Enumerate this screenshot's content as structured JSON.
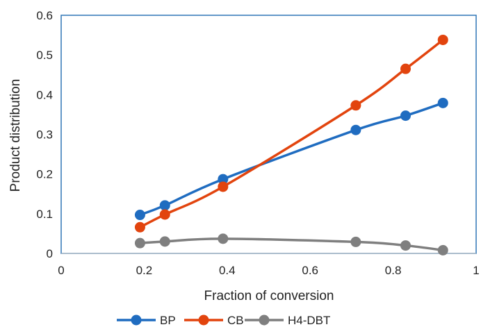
{
  "chart_data": {
    "type": "line",
    "title": "",
    "xlabel": "Fraction of conversion",
    "ylabel": "Product distribution",
    "xlim": [
      0,
      1
    ],
    "ylim": [
      0,
      0.6
    ],
    "xticks": [
      0,
      0.2,
      0.4,
      0.6,
      0.8,
      1
    ],
    "xtick_labels": [
      "0",
      "0.2",
      "0.4",
      "0.6",
      "0.8",
      "1"
    ],
    "yticks": [
      0,
      0.1,
      0.2,
      0.3,
      0.4,
      0.5,
      0.6
    ],
    "ytick_labels": [
      "0",
      "0.1",
      "0.2",
      "0.3",
      "0.4",
      "0.5",
      "0.6"
    ],
    "grid": false,
    "legend_position": "bottom",
    "smooth": true,
    "plot_border_color": "#2E75B6",
    "series": [
      {
        "name": "BP",
        "color": "#1F6CC0",
        "x": [
          0.19,
          0.25,
          0.39,
          0.71,
          0.83,
          0.92
        ],
        "y": [
          0.097,
          0.121,
          0.187,
          0.311,
          0.347,
          0.379
        ]
      },
      {
        "name": "CB",
        "color": "#E2440E",
        "x": [
          0.19,
          0.25,
          0.39,
          0.71,
          0.83,
          0.92
        ],
        "y": [
          0.066,
          0.098,
          0.168,
          0.373,
          0.465,
          0.538
        ]
      },
      {
        "name": "H4-DBT",
        "color": "#7F7F7F",
        "x": [
          0.19,
          0.25,
          0.39,
          0.71,
          0.83,
          0.92
        ],
        "y": [
          0.026,
          0.03,
          0.037,
          0.029,
          0.02,
          0.008
        ]
      }
    ]
  }
}
